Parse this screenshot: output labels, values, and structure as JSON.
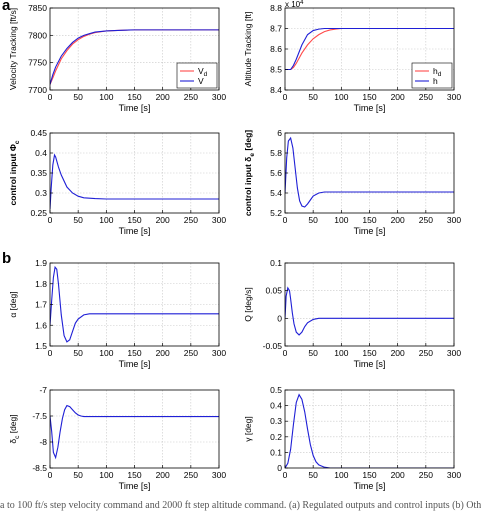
{
  "panel_labels": {
    "a": "a",
    "b": "b"
  },
  "caption": "a to 100 ft/s step velocity command and 2000 ft step altitude command. (a) Regulated outputs and control inputs (b) Oth",
  "colors": {
    "blue": "#1f1fd6",
    "red": "#ff4a4a",
    "grid": "#c8c8c8"
  },
  "chart_data": [
    {
      "id": "velocity",
      "type": "line",
      "xlabel": "Time [s]",
      "ylabel": "Velocity Tracking [ft/s]",
      "xlim": [
        0,
        300
      ],
      "ylim": [
        7700,
        7850
      ],
      "xticks": [
        0,
        50,
        100,
        150,
        200,
        250,
        300
      ],
      "yticks": [
        7700,
        7750,
        7800,
        7850
      ],
      "grid": true,
      "legend": {
        "position": "bottom-right",
        "entries": [
          "V_d",
          "V"
        ]
      },
      "series": [
        {
          "name": "V_d",
          "color": "red",
          "x": [
            0,
            5,
            10,
            20,
            30,
            40,
            50,
            60,
            70,
            80,
            100,
            120,
            150,
            200,
            250,
            300
          ],
          "y": [
            7710,
            7722,
            7735,
            7757,
            7772,
            7784,
            7792,
            7798,
            7802,
            7805,
            7808,
            7809,
            7810,
            7810,
            7810,
            7810
          ]
        },
        {
          "name": "V",
          "color": "blue",
          "x": [
            0,
            5,
            10,
            20,
            30,
            40,
            50,
            60,
            70,
            80,
            100,
            120,
            150,
            200,
            250,
            300
          ],
          "y": [
            7710,
            7728,
            7742,
            7762,
            7776,
            7787,
            7795,
            7800,
            7803,
            7806,
            7808,
            7809,
            7810,
            7810,
            7810,
            7810
          ]
        }
      ]
    },
    {
      "id": "altitude",
      "type": "line",
      "xlabel": "Time [s]",
      "ylabel": "Altitude Tracking [ft]",
      "exponent_label": "x 10",
      "exponent_power": "4",
      "xlim": [
        0,
        300
      ],
      "ylim": [
        8.4,
        8.8
      ],
      "xticks": [
        0,
        50,
        100,
        150,
        200,
        250,
        300
      ],
      "yticks": [
        8.4,
        8.5,
        8.6,
        8.7,
        8.8
      ],
      "grid": true,
      "legend": {
        "position": "bottom-right",
        "entries": [
          "h_d",
          "h"
        ]
      },
      "series": [
        {
          "name": "h_d",
          "color": "red",
          "x": [
            0,
            10,
            15,
            20,
            30,
            40,
            50,
            60,
            70,
            80,
            90,
            100,
            110,
            150,
            200,
            250,
            300
          ],
          "y": [
            8.5,
            8.5,
            8.51,
            8.53,
            8.58,
            8.62,
            8.65,
            8.67,
            8.685,
            8.693,
            8.697,
            8.7,
            8.7,
            8.7,
            8.7,
            8.7,
            8.7
          ]
        },
        {
          "name": "h",
          "color": "blue",
          "x": [
            0,
            10,
            15,
            20,
            30,
            40,
            50,
            60,
            70,
            80,
            90,
            100,
            110,
            150,
            200,
            250,
            300
          ],
          "y": [
            8.5,
            8.5,
            8.52,
            8.55,
            8.62,
            8.67,
            8.69,
            8.697,
            8.7,
            8.7,
            8.7,
            8.7,
            8.7,
            8.7,
            8.7,
            8.7,
            8.7
          ]
        }
      ]
    },
    {
      "id": "phi",
      "type": "line",
      "xlabel": "Time [s]",
      "ylabel": "control input Φ",
      "ylabel_sub": "c",
      "xlim": [
        0,
        300
      ],
      "ylim": [
        0.25,
        0.45
      ],
      "xticks": [
        0,
        50,
        100,
        150,
        200,
        250,
        300
      ],
      "yticks": [
        0.25,
        0.3,
        0.35,
        0.4,
        0.45
      ],
      "grid": true,
      "series": [
        {
          "name": "",
          "color": "blue",
          "x": [
            0,
            2,
            5,
            8,
            10,
            15,
            20,
            30,
            40,
            50,
            60,
            80,
            100,
            150,
            200,
            250,
            300
          ],
          "y": [
            0.26,
            0.31,
            0.37,
            0.395,
            0.39,
            0.365,
            0.345,
            0.315,
            0.3,
            0.292,
            0.288,
            0.286,
            0.285,
            0.285,
            0.285,
            0.285,
            0.285
          ]
        }
      ]
    },
    {
      "id": "delta_e",
      "type": "line",
      "xlabel": "Time [s]",
      "ylabel": "control input δ",
      "ylabel_sub": "e",
      "ylabel_unit": " [deg]",
      "xlim": [
        0,
        300
      ],
      "ylim": [
        5.2,
        6.0
      ],
      "xticks": [
        0,
        50,
        100,
        150,
        200,
        250,
        300
      ],
      "yticks": [
        5.2,
        5.4,
        5.6,
        5.8,
        6.0
      ],
      "grid": true,
      "series": [
        {
          "name": "",
          "color": "blue",
          "x": [
            0,
            3,
            6,
            10,
            14,
            18,
            22,
            26,
            30,
            35,
            40,
            45,
            50,
            60,
            70,
            80,
            100,
            150,
            200,
            250,
            300
          ],
          "y": [
            5.4,
            5.75,
            5.92,
            5.95,
            5.85,
            5.65,
            5.45,
            5.32,
            5.27,
            5.26,
            5.29,
            5.33,
            5.37,
            5.4,
            5.41,
            5.41,
            5.41,
            5.41,
            5.41,
            5.41,
            5.41
          ]
        }
      ]
    },
    {
      "id": "alpha",
      "type": "line",
      "xlabel": "Time [s]",
      "ylabel": "α [deg]",
      "xlim": [
        0,
        300
      ],
      "ylim": [
        1.5,
        1.9
      ],
      "xticks": [
        0,
        50,
        100,
        150,
        200,
        250,
        300
      ],
      "yticks": [
        1.5,
        1.6,
        1.7,
        1.8,
        1.9
      ],
      "grid": true,
      "series": [
        {
          "name": "",
          "color": "blue",
          "x": [
            0,
            3,
            6,
            9,
            12,
            15,
            20,
            25,
            30,
            35,
            40,
            45,
            50,
            60,
            70,
            80,
            100,
            150,
            200,
            250,
            300
          ],
          "y": [
            1.6,
            1.72,
            1.83,
            1.88,
            1.87,
            1.8,
            1.65,
            1.55,
            1.52,
            1.53,
            1.57,
            1.61,
            1.63,
            1.65,
            1.655,
            1.655,
            1.655,
            1.655,
            1.655,
            1.655,
            1.655
          ]
        }
      ]
    },
    {
      "id": "q",
      "type": "line",
      "xlabel": "Time [s]",
      "ylabel": "Q [deg/s]",
      "xlim": [
        0,
        300
      ],
      "ylim": [
        -0.05,
        0.1
      ],
      "xticks": [
        0,
        50,
        100,
        150,
        200,
        250,
        300
      ],
      "yticks": [
        -0.05,
        0,
        0.05,
        0.1
      ],
      "grid": true,
      "series": [
        {
          "name": "",
          "color": "blue",
          "x": [
            0,
            2,
            5,
            8,
            10,
            13,
            16,
            20,
            25,
            30,
            35,
            40,
            50,
            60,
            80,
            100,
            150,
            200,
            250,
            300
          ],
          "y": [
            0,
            0.04,
            0.055,
            0.05,
            0.035,
            0.01,
            -0.01,
            -0.025,
            -0.03,
            -0.025,
            -0.015,
            -0.008,
            -0.002,
            0,
            0,
            0,
            0,
            0,
            0,
            0
          ]
        }
      ]
    },
    {
      "id": "delta_c",
      "type": "line",
      "xlabel": "Time [s]",
      "ylabel": "δ",
      "ylabel_sub": "c",
      "ylabel_unit": " [deg]",
      "xlim": [
        0,
        300
      ],
      "ylim": [
        -8.5,
        -7
      ],
      "xticks": [
        0,
        50,
        100,
        150,
        200,
        250,
        300
      ],
      "yticks": [
        -8.5,
        -8,
        -7.5,
        -7
      ],
      "grid": true,
      "series": [
        {
          "name": "",
          "color": "blue",
          "x": [
            0,
            3,
            6,
            10,
            14,
            18,
            22,
            26,
            30,
            35,
            40,
            45,
            50,
            55,
            60,
            70,
            80,
            100,
            150,
            200,
            250,
            300
          ],
          "y": [
            -7.5,
            -7.8,
            -8.2,
            -8.3,
            -8.1,
            -7.8,
            -7.55,
            -7.38,
            -7.3,
            -7.32,
            -7.38,
            -7.44,
            -7.48,
            -7.5,
            -7.51,
            -7.51,
            -7.51,
            -7.51,
            -7.51,
            -7.51,
            -7.51,
            -7.51
          ]
        }
      ]
    },
    {
      "id": "gamma",
      "type": "line",
      "xlabel": "Time [s]",
      "ylabel": "γ [deg]",
      "xlim": [
        0,
        300
      ],
      "ylim": [
        0,
        0.5
      ],
      "xticks": [
        0,
        50,
        100,
        150,
        200,
        250,
        300
      ],
      "yticks": [
        0,
        0.1,
        0.2,
        0.3,
        0.4,
        0.5
      ],
      "grid": true,
      "series": [
        {
          "name": "",
          "color": "blue",
          "x": [
            0,
            5,
            10,
            15,
            20,
            25,
            30,
            35,
            40,
            45,
            50,
            55,
            60,
            70,
            80,
            90,
            100,
            150,
            200,
            250,
            300
          ],
          "y": [
            0,
            0.03,
            0.12,
            0.28,
            0.42,
            0.47,
            0.44,
            0.36,
            0.25,
            0.15,
            0.08,
            0.04,
            0.02,
            0.005,
            0,
            0,
            0,
            0,
            0,
            0,
            0
          ]
        }
      ]
    }
  ]
}
